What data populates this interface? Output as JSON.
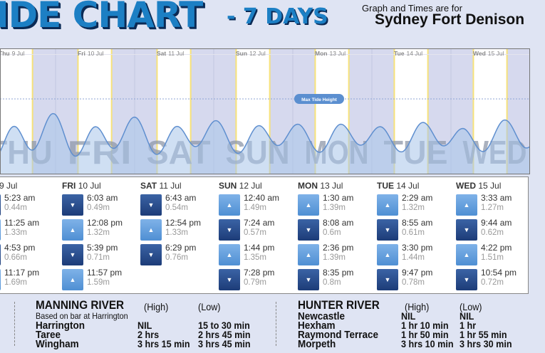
{
  "header": {
    "title": "IDE CHART",
    "subtitle": "- 7 DAYS",
    "for_label": "Graph and Times are for",
    "location": "Sydney Fort Denison"
  },
  "chart_data": {
    "type": "area",
    "ylabel": "",
    "max_line_label": "Max Tide Height",
    "day_labels": [
      {
        "bold": "Thu",
        "rest": "9 Jul"
      },
      {
        "bold": "Fri",
        "rest": "10 Jul"
      },
      {
        "bold": "Sat",
        "rest": "11 Jul"
      },
      {
        "bold": "Sun",
        "rest": "12 Jul"
      },
      {
        "bold": "Mon",
        "rest": "13 Jul"
      },
      {
        "bold": "Tue",
        "rest": "14 Jul"
      },
      {
        "bold": "Wed",
        "rest": "15 Jul"
      }
    ],
    "watermarks": [
      "THU",
      "FRI",
      "SAT",
      "SUN",
      "MON",
      "TUE",
      "WED"
    ],
    "unit": "m",
    "max_tide_height": 2.1,
    "colors": {
      "curve": "#5f8fcf",
      "fill": "#a8c4ea",
      "night": "#d6d9ee",
      "day": "#ffffff",
      "daylight_edge": "#f7e27a"
    }
  },
  "tide_table": [
    {
      "dow": "",
      "date": "9 Jul",
      "tides": [
        {
          "type": "low",
          "time": "5:23 am",
          "height": "0.44m"
        },
        {
          "type": "high",
          "time": "11:25 am",
          "height": "1.33m"
        },
        {
          "type": "low",
          "time": "4:53 pm",
          "height": "0.66m"
        },
        {
          "type": "high",
          "time": "11:17 pm",
          "height": "1.69m"
        }
      ]
    },
    {
      "dow": "FRI",
      "date": "10 Jul",
      "tides": [
        {
          "type": "low",
          "time": "6:03 am",
          "height": "0.49m"
        },
        {
          "type": "high",
          "time": "12:08 pm",
          "height": "1.32m"
        },
        {
          "type": "low",
          "time": "5:39 pm",
          "height": "0.71m"
        },
        {
          "type": "high",
          "time": "11:57 pm",
          "height": "1.59m"
        }
      ]
    },
    {
      "dow": "SAT",
      "date": "11 Jul",
      "tides": [
        {
          "type": "low",
          "time": "6:43 am",
          "height": "0.54m"
        },
        {
          "type": "high",
          "time": "12:54 pm",
          "height": "1.33m"
        },
        {
          "type": "low",
          "time": "6:29 pm",
          "height": "0.76m"
        }
      ]
    },
    {
      "dow": "SUN",
      "date": "12 Jul",
      "tides": [
        {
          "type": "high",
          "time": "12:40 am",
          "height": "1.49m"
        },
        {
          "type": "low",
          "time": "7:24 am",
          "height": "0.57m"
        },
        {
          "type": "high",
          "time": "1:44 pm",
          "height": "1.35m"
        },
        {
          "type": "low",
          "time": "7:28 pm",
          "height": "0.79m"
        }
      ]
    },
    {
      "dow": "MON",
      "date": "13 Jul",
      "tides": [
        {
          "type": "high",
          "time": "1:30 am",
          "height": "1.39m"
        },
        {
          "type": "low",
          "time": "8:08 am",
          "height": "0.6m"
        },
        {
          "type": "high",
          "time": "2:36 pm",
          "height": "1.39m"
        },
        {
          "type": "low",
          "time": "8:35 pm",
          "height": "0.8m"
        }
      ]
    },
    {
      "dow": "TUE",
      "date": "14 Jul",
      "tides": [
        {
          "type": "high",
          "time": "2:29 am",
          "height": "1.32m"
        },
        {
          "type": "low",
          "time": "8:55 am",
          "height": "0.61m"
        },
        {
          "type": "high",
          "time": "3:30 pm",
          "height": "1.44m"
        },
        {
          "type": "low",
          "time": "9:47 pm",
          "height": "0.78m"
        }
      ]
    },
    {
      "dow": "WED",
      "date": "15 Jul",
      "tides": [
        {
          "type": "high",
          "time": "3:33 am",
          "height": "1.27m"
        },
        {
          "type": "low",
          "time": "9:44 am",
          "height": "0.62m"
        },
        {
          "type": "high",
          "time": "4:22 pm",
          "height": "1.51m"
        },
        {
          "type": "low",
          "time": "10:54 pm",
          "height": "0.72m"
        }
      ]
    }
  ],
  "icons": {
    "high": "chevron-up-icon",
    "low": "chevron-down-icon"
  },
  "manning": {
    "title": "MANNING RIVER",
    "high": "(High)",
    "low": "(Low)",
    "note": "Based on bar at Harrington",
    "rows": [
      {
        "place": "Harrington",
        "high": "NIL",
        "low": "15 to 30 min"
      },
      {
        "place": "Taree",
        "high": "2 hrs",
        "low": "2 hrs 45 min"
      },
      {
        "place": "Wingham",
        "high": "3 hrs 15 min",
        "low": "3 hrs 45 min"
      }
    ]
  },
  "hunter": {
    "title": "HUNTER RIVER",
    "high": "(High)",
    "low": "(Low)",
    "rows": [
      {
        "place": "Newcastle",
        "high": "NIL",
        "low": "NIL"
      },
      {
        "place": "Hexham",
        "high": "1 hr 10 min",
        "low": "1 hr"
      },
      {
        "place": "Raymond Terrace",
        "high": "1 hr 50 min",
        "low": "1 hr 55 min"
      },
      {
        "place": "Morpeth",
        "high": "3 hrs 10 min",
        "low": "3 hrs 30 min"
      }
    ]
  }
}
